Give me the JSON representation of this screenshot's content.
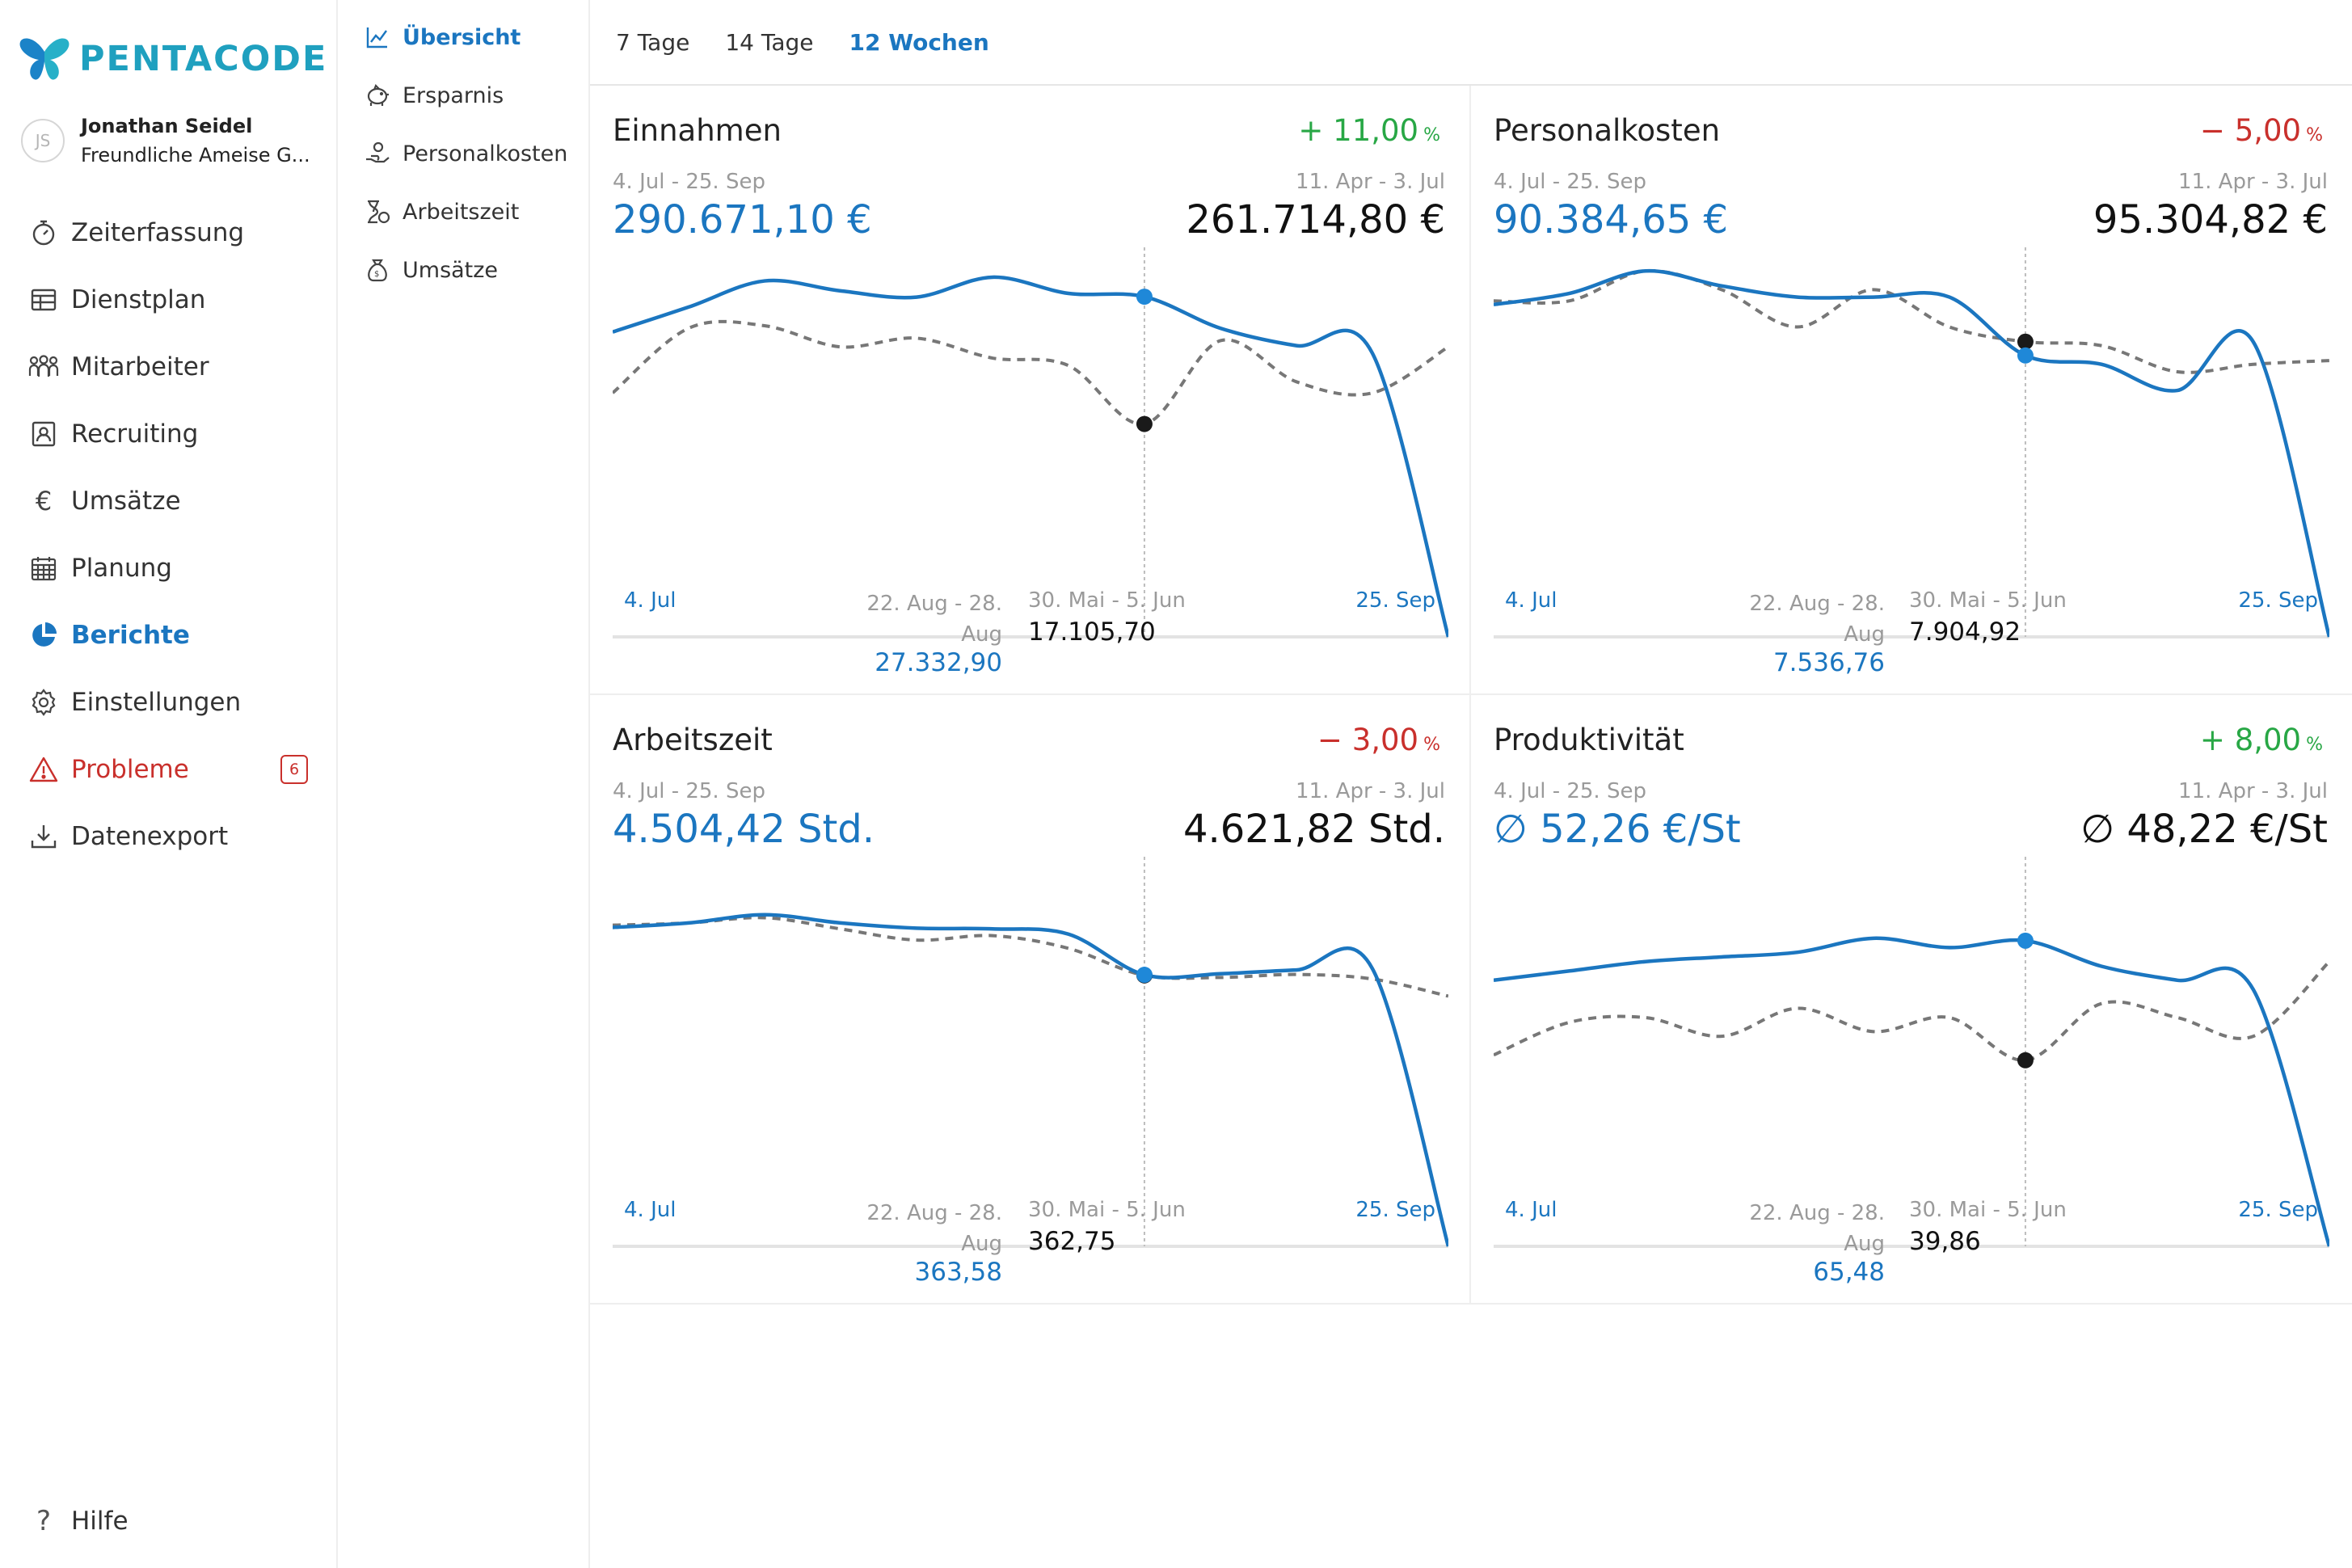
{
  "brand": {
    "name": "PENTACODE",
    "color": "#1fa0bf"
  },
  "user": {
    "initials": "JS",
    "name": "Jonathan Seidel",
    "company": "Freundliche Ameise G..."
  },
  "nav": {
    "items": [
      {
        "label": "Zeiterfassung",
        "icon": "stopwatch-icon"
      },
      {
        "label": "Dienstplan",
        "icon": "table-icon"
      },
      {
        "label": "Mitarbeiter",
        "icon": "users-icon"
      },
      {
        "label": "Recruiting",
        "icon": "id-card-icon"
      },
      {
        "label": "Umsätze",
        "icon": "euro-icon"
      },
      {
        "label": "Planung",
        "icon": "calendar-icon"
      },
      {
        "label": "Berichte",
        "icon": "pie-chart-icon",
        "active": true
      },
      {
        "label": "Einstellungen",
        "icon": "gear-icon"
      },
      {
        "label": "Probleme",
        "icon": "warning-icon",
        "badge": "6"
      },
      {
        "label": "Datenexport",
        "icon": "download-icon"
      }
    ],
    "help": "Hilfe"
  },
  "subnav": {
    "items": [
      {
        "label": "Übersicht",
        "icon": "line-chart-icon",
        "active": true
      },
      {
        "label": "Ersparnis",
        "icon": "piggy-bank-icon"
      },
      {
        "label": "Personalkosten",
        "icon": "hand-coin-icon"
      },
      {
        "label": "Arbeitszeit",
        "icon": "hourglass-euro-icon"
      },
      {
        "label": "Umsätze",
        "icon": "money-bag-icon"
      }
    ]
  },
  "tabs": [
    {
      "label": "7 Tage"
    },
    {
      "label": "14 Tage"
    },
    {
      "label": "12 Wochen",
      "active": true
    }
  ],
  "colors": {
    "accent": "#1b76c0",
    "positive": "#28a745",
    "negative": "#c9302c",
    "previous": "#777777",
    "dot_current": "#1f88d8",
    "dot_previous": "#1a1a1a"
  },
  "panels": [
    {
      "title": "Einnahmen",
      "change_sign": "+",
      "change": "11,00",
      "change_unit": "%",
      "trend": "up",
      "current_range": "4. Jul - 25. Sep",
      "previous_range": "11. Apr - 3. Jul",
      "current_total": "290.671,10 €",
      "previous_total": "261.714,80 €",
      "x_start": "4. Jul",
      "x_end": "25. Sep",
      "hover_current_label": "22. Aug - 28. Aug",
      "hover_current_value": "27.332,90",
      "hover_previous_label": "30. Mai - 5. Jun",
      "hover_previous_value": "17.105,70"
    },
    {
      "title": "Personalkosten",
      "change_sign": "−",
      "change": "5,00",
      "change_unit": "%",
      "trend": "down",
      "current_range": "4. Jul - 25. Sep",
      "previous_range": "11. Apr - 3. Jul",
      "current_total": "90.384,65 €",
      "previous_total": "95.304,82 €",
      "x_start": "4. Jul",
      "x_end": "25. Sep",
      "hover_current_label": "22. Aug - 28. Aug",
      "hover_current_value": "7.536,76",
      "hover_previous_label": "30. Mai - 5. Jun",
      "hover_previous_value": "7.904,92"
    },
    {
      "title": "Arbeitszeit",
      "change_sign": "−",
      "change": "3,00",
      "change_unit": "%",
      "trend": "down",
      "current_range": "4. Jul - 25. Sep",
      "previous_range": "11. Apr - 3. Jul",
      "current_total": "4.504,42 Std.",
      "previous_total": "4.621,82 Std.",
      "x_start": "4. Jul",
      "x_end": "25. Sep",
      "hover_current_label": "22. Aug - 28. Aug",
      "hover_current_value": "363,58",
      "hover_previous_label": "30. Mai - 5. Jun",
      "hover_previous_value": "362,75"
    },
    {
      "title": "Produktivität",
      "change_sign": "+",
      "change": "8,00",
      "change_unit": "%",
      "trend": "up",
      "current_range": "4. Jul - 25. Sep",
      "previous_range": "11. Apr - 3. Jul",
      "current_total": "∅ 52,26 €/St",
      "previous_total": "∅ 48,22 €/St",
      "x_start": "4. Jul",
      "x_end": "25. Sep",
      "hover_current_label": "22. Aug - 28. Aug",
      "hover_current_value": "65,48",
      "hover_previous_label": "30. Mai - 5. Jun",
      "hover_previous_value": "39,86"
    }
  ],
  "chart_data": [
    {
      "type": "line",
      "title": "Einnahmen",
      "hover_index": 7,
      "ylim": [
        0,
        30000
      ],
      "series": [
        {
          "values": [
            24500,
            26500,
            28600,
            27800,
            27300,
            28900,
            27600,
            27332.9,
            24800,
            23400,
            22800,
            0
          ]
        },
        {
          "values": [
            19600,
            24800,
            25000,
            23300,
            24000,
            22400,
            21800,
            17105.7,
            23800,
            20500,
            19600,
            23300
          ]
        }
      ]
    },
    {
      "type": "line",
      "title": "Personalkosten",
      "hover_index": 7,
      "ylim": [
        0,
        10000
      ],
      "series": [
        {
          "values": [
            8900,
            9200,
            9800,
            9400,
            9100,
            9100,
            9100,
            7536.76,
            7300,
            6600,
            7900,
            0
          ]
        },
        {
          "values": [
            9000,
            9000,
            9800,
            9300,
            8300,
            9300,
            8300,
            7904.92,
            7800,
            7100,
            7300,
            7400
          ]
        }
      ]
    },
    {
      "type": "line",
      "title": "Arbeitszeit",
      "hover_index": 7,
      "ylim": [
        0,
        500
      ],
      "series": [
        {
          "values": [
            427,
            433,
            444,
            433,
            426,
            425,
            418,
            363.58,
            365,
            370,
            372,
            0
          ]
        },
        {
          "values": [
            430,
            433,
            440,
            425,
            410,
            416,
            399,
            362.75,
            360,
            364,
            358,
            335
          ]
        }
      ]
    },
    {
      "type": "line",
      "title": "Produktivität",
      "hover_index": 7,
      "ylim": [
        0,
        80
      ],
      "series": [
        {
          "values": [
            57,
            59,
            61,
            62,
            63,
            66,
            64,
            65.48,
            60,
            57,
            55,
            0
          ]
        },
        {
          "values": [
            41,
            48,
            49,
            45,
            51,
            46,
            49,
            39.86,
            52,
            49,
            45,
            61
          ]
        }
      ]
    }
  ]
}
